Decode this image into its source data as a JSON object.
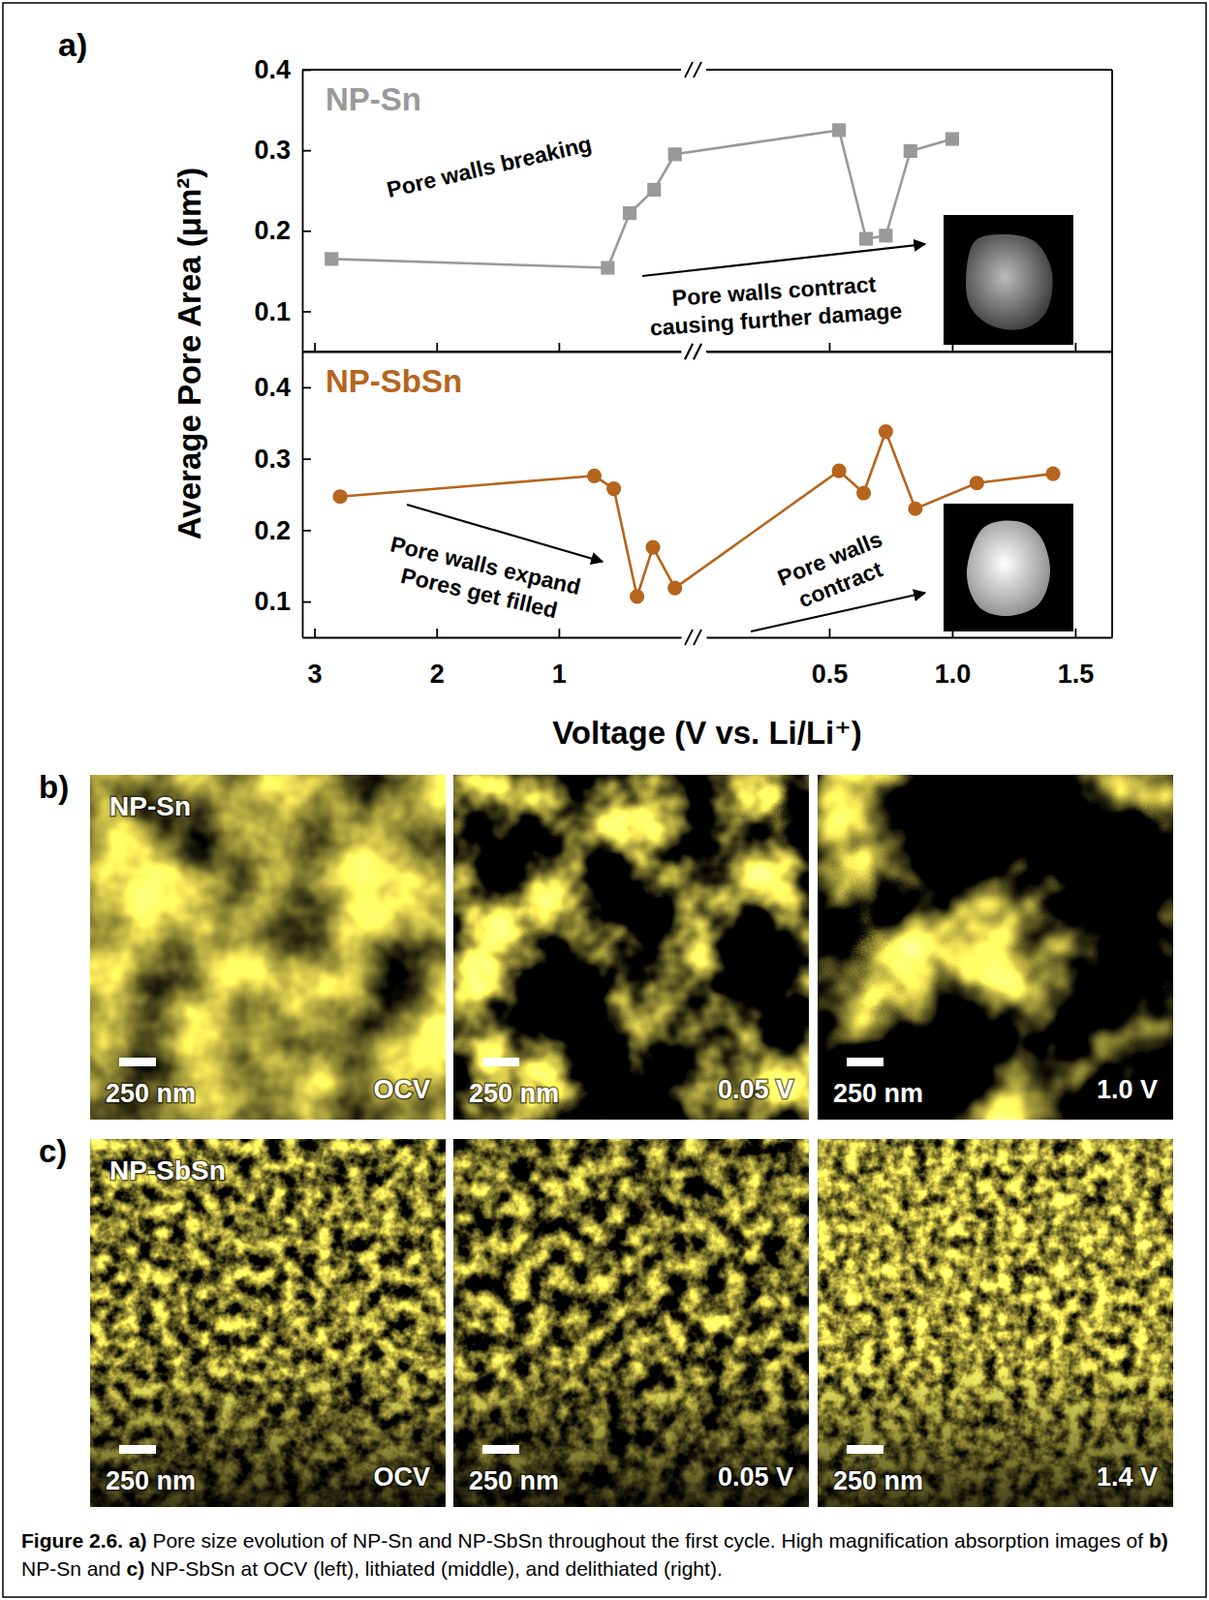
{
  "panel_a": {
    "label": "a)"
  },
  "chart_data": [
    {
      "type": "line",
      "title": "NP-Sn",
      "ylabel": "Average Pore Area (μm²)",
      "color": "#999999",
      "marker": "square",
      "tick_labels": "y",
      "xlim": [
        3.1,
        0
      ],
      "xticks": [
        3,
        2,
        1
      ],
      "x2lim": [
        0,
        1.65
      ],
      "x2ticks": [
        0.5,
        1,
        1.5
      ],
      "ylim": [
        0.05,
        0.4
      ],
      "yticks": [
        0.1,
        0.2,
        0.3,
        0.4
      ],
      "series": [
        {
          "x": [
            2.86,
            0.6,
            0.42,
            0.22,
            0.05
          ],
          "values": [
            0.165,
            0.154,
            0.222,
            0.251,
            0.295
          ]
        },
        {
          "axis": "x2",
          "x": [
            0.54,
            0.65,
            0.73,
            0.83,
            1.0
          ],
          "values": [
            0.325,
            0.19,
            0.194,
            0.299,
            0.314
          ]
        }
      ],
      "annotations": [
        {
          "text": [
            "Pore walls breaking"
          ]
        },
        {
          "text": [
            "Pore walls contract",
            "causing further damage"
          ]
        }
      ]
    },
    {
      "type": "line",
      "title": "NP-SbSn",
      "xlabel": "Voltage (V vs. Li/Li⁺)",
      "color": "#b5651d",
      "marker": "circle",
      "xlim": [
        3.1,
        0
      ],
      "xticks": [
        3,
        2,
        1
      ],
      "x2lim": [
        0,
        1.65
      ],
      "x2ticks": [
        0.5,
        {
          "value": 1,
          "label": "1.0"
        },
        1.5
      ],
      "ylim": [
        0.05,
        0.45
      ],
      "yticks": [
        0.1,
        0.2,
        0.3,
        0.4
      ],
      "series": [
        {
          "x": [
            2.79,
            0.71,
            0.55,
            0.36,
            0.23,
            0.05
          ],
          "values": [
            0.247,
            0.276,
            0.258,
            0.107,
            0.176,
            0.119
          ]
        },
        {
          "axis": "x2",
          "x": [
            0.54,
            0.64,
            0.73,
            0.85,
            1.1,
            1.41
          ],
          "values": [
            0.283,
            0.252,
            0.338,
            0.23,
            0.266,
            0.279
          ]
        }
      ],
      "annotations": [
        {
          "text": [
            "Pore walls expand",
            "Pores get filled"
          ]
        },
        {
          "text": [
            "Pore walls",
            "contract"
          ]
        }
      ]
    }
  ],
  "image_panels": [
    {
      "label": "b)",
      "sample": "NP-Sn",
      "images": [
        {
          "state": "OCV",
          "scale_bar": "250 nm"
        },
        {
          "state": "0.05 V",
          "scale_bar": "250 nm"
        },
        {
          "state": "1.0 V",
          "scale_bar": "250 nm"
        }
      ]
    },
    {
      "label": "c)",
      "sample": "NP-SbSn",
      "images": [
        {
          "state": "OCV",
          "scale_bar": "250 nm"
        },
        {
          "state": "0.05 V",
          "scale_bar": "250 nm"
        },
        {
          "state": "1.4 V",
          "scale_bar": "250 nm"
        }
      ]
    }
  ],
  "figure": {
    "caption": [
      {
        "text": "Figure 2.6.",
        "bold": true
      },
      {
        "text": "a)",
        "bold": true
      },
      {
        "text": "Pore size evolution of NP-Sn and NP-SbSn throughout the first cycle. High magnification absorption images of"
      },
      {
        "text": "b)",
        "bold": true
      },
      {
        "text": "NP-Sn and"
      },
      {
        "text": "c)",
        "bold": true
      },
      {
        "text": "NP-SbSn at OCV (left), lithiated (middle), and delithiated (right)."
      }
    ]
  }
}
